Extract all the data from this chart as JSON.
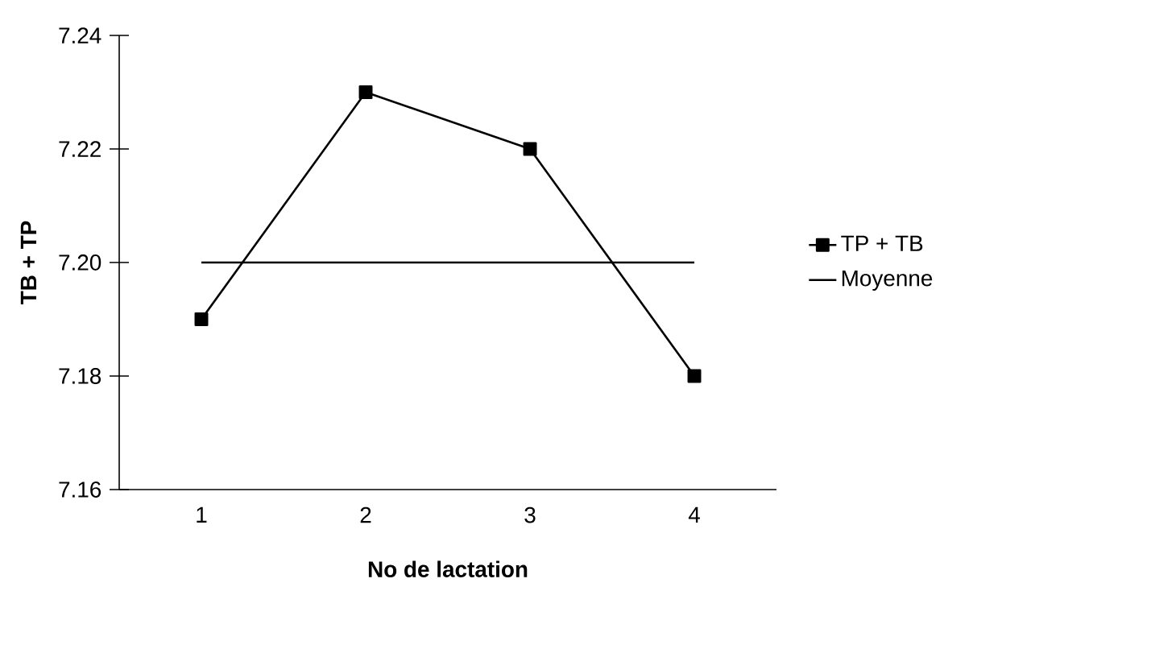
{
  "chart_data": {
    "type": "line",
    "xlabel": "No de lactation",
    "ylabel": "TB + TP",
    "categories": [
      "1",
      "2",
      "3",
      "4"
    ],
    "series": [
      {
        "name": "TP + TB",
        "color": "#000000",
        "values": [
          7.19,
          7.23,
          7.22,
          7.18
        ],
        "marker": "square"
      },
      {
        "name": "Moyenne",
        "color": "#000000",
        "values": [
          7.2,
          7.2,
          7.2,
          7.2
        ],
        "marker": "none"
      }
    ],
    "ylim": [
      7.16,
      7.24
    ],
    "yticks": [
      7.16,
      7.18,
      {
        "value": 7.2,
        "label": "7.20"
      },
      7.22,
      7.24
    ],
    "legend": "right",
    "line_style": "solid"
  }
}
